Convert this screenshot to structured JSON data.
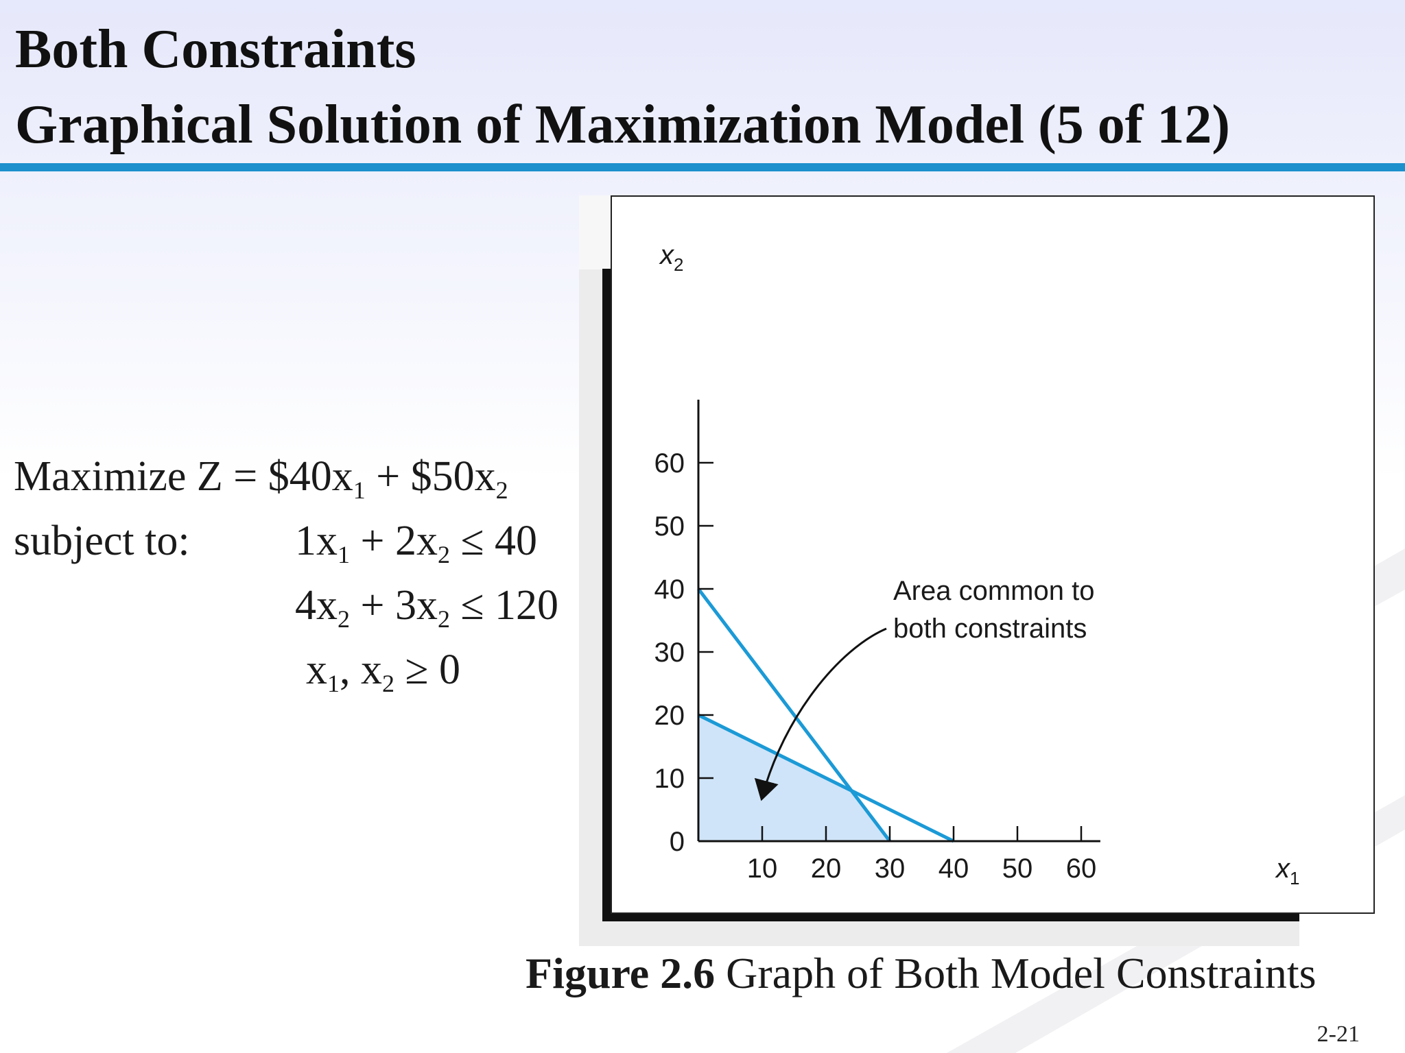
{
  "slide": {
    "title_line1": "Both Constraints",
    "title_line2": "Graphical Solution of Maximization Model (5 of 12)",
    "page_number": "2-21",
    "accent_color": "#1c90cc"
  },
  "model": {
    "objective": {
      "prefix": "Maximize Z = $40x",
      "sub1": "1",
      "mid": " + $50x",
      "sub2": "2"
    },
    "subject_label": "subject to:",
    "constraint1": {
      "a": "1x",
      "s1": "1",
      "b": " + 2x",
      "s2": "2",
      "c": " ≤ 40"
    },
    "constraint2": {
      "a": "4x",
      "s1": "2",
      "b": " + 3x",
      "s2": "2",
      "c": " ≤ 120"
    },
    "nonneg": {
      "a": "x",
      "s1": "1",
      "b": ", x",
      "s2": "2",
      "c": " ≥ 0"
    }
  },
  "caption": {
    "bold": "Figure 2.6",
    "text": " Graph of Both Model Constraints"
  },
  "chart_data": {
    "type": "line",
    "title": "",
    "xlabel": {
      "base": "x",
      "sub": "1"
    },
    "ylabel": {
      "base": "x",
      "sub": "2"
    },
    "xlim": [
      0,
      63
    ],
    "ylim": [
      0,
      70
    ],
    "x_ticks": [
      10,
      20,
      30,
      40,
      50,
      60
    ],
    "y_ticks": [
      0,
      10,
      20,
      30,
      40,
      50,
      60
    ],
    "grid": false,
    "series": [
      {
        "points": [
          [
            0,
            40
          ],
          [
            30,
            0
          ]
        ],
        "color": "#1b9ad6"
      },
      {
        "points": [
          [
            0,
            20
          ],
          [
            40,
            0
          ]
        ],
        "color": "#1b9ad6"
      }
    ],
    "feasible_region": {
      "points": [
        [
          0,
          0
        ],
        [
          0,
          20
        ],
        [
          24,
          8
        ],
        [
          30,
          0
        ]
      ],
      "color": "#cfe4f8"
    },
    "annotation": {
      "lines": [
        "Area common to",
        "both constraints"
      ],
      "points_to": [
        10,
        7
      ]
    }
  }
}
